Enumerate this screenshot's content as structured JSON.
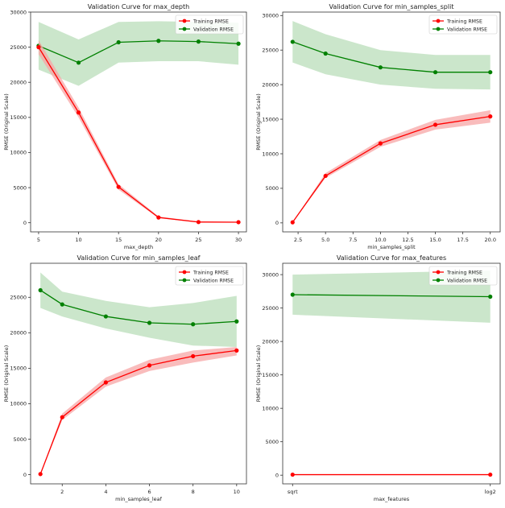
{
  "colors": {
    "training": "#ff0000",
    "validation": "#008000",
    "training_band": "#f7a6a6",
    "validation_band": "#a8d5a8"
  },
  "chart_data": [
    {
      "type": "line",
      "title": "Validation Curve for max_depth",
      "xlabel": "max_depth",
      "ylabel": "RMSE (Original Scale)",
      "xscale": "linear",
      "xlim": [
        4,
        31
      ],
      "ylim": [
        -1300,
        30000
      ],
      "xticks": [
        5,
        10,
        15,
        20,
        25,
        30
      ],
      "xtick_labels": [
        "5",
        "10",
        "15",
        "20",
        "25",
        "30"
      ],
      "yticks": [
        0,
        5000,
        10000,
        15000,
        20000,
        25000,
        30000
      ],
      "legend": "top-right",
      "grid": false,
      "x": [
        5,
        10,
        15,
        20,
        25,
        30
      ],
      "series": [
        {
          "name": "Training RMSE",
          "values": [
            25000,
            15700,
            5100,
            750,
            100,
            80
          ],
          "band_lower": [
            24000,
            15000,
            4700,
            650,
            50,
            30
          ],
          "band_upper": [
            26000,
            16400,
            5500,
            900,
            150,
            130
          ]
        },
        {
          "name": "Validation RMSE",
          "values": [
            25200,
            22800,
            25700,
            25900,
            25800,
            25500
          ],
          "band_lower": [
            21800,
            19500,
            22800,
            23000,
            23000,
            22500
          ],
          "band_upper": [
            28600,
            26100,
            28600,
            28700,
            28600,
            28500
          ]
        }
      ]
    },
    {
      "type": "line",
      "title": "Validation Curve for min_samples_split",
      "xlabel": "min_samples_split",
      "ylabel": "RMSE (Original Scale)",
      "xscale": "linear",
      "xlim": [
        1.1,
        20.9
      ],
      "ylim": [
        -1300,
        30500
      ],
      "xticks": [
        2.5,
        5.0,
        7.5,
        10.0,
        12.5,
        15.0,
        17.5,
        20.0
      ],
      "xtick_labels": [
        "2.5",
        "5.0",
        "7.5",
        "10.0",
        "12.5",
        "15.0",
        "17.5",
        "20.0"
      ],
      "yticks": [
        0,
        5000,
        10000,
        15000,
        20000,
        25000,
        30000
      ],
      "legend": "top-right",
      "grid": false,
      "x": [
        2,
        5,
        10,
        15,
        20
      ],
      "series": [
        {
          "name": "Training RMSE",
          "values": [
            80,
            6800,
            11500,
            14200,
            15400
          ],
          "band_lower": [
            40,
            6500,
            11000,
            13500,
            14500
          ],
          "band_upper": [
            120,
            7200,
            12000,
            14900,
            16300
          ]
        },
        {
          "name": "Validation RMSE",
          "values": [
            26200,
            24500,
            22500,
            21800,
            21800
          ],
          "band_lower": [
            23200,
            21500,
            20000,
            19400,
            19300
          ],
          "band_upper": [
            29200,
            27300,
            25000,
            24300,
            24300
          ]
        }
      ]
    },
    {
      "type": "line",
      "title": "Validation Curve for min_samples_leaf",
      "xlabel": "min_samples_leaf",
      "ylabel": "RMSE (Original Scale)",
      "xscale": "linear",
      "xlim": [
        0.55,
        10.45
      ],
      "ylim": [
        -1300,
        29800
      ],
      "xticks": [
        2,
        4,
        6,
        8,
        10
      ],
      "xtick_labels": [
        "2",
        "4",
        "6",
        "8",
        "10"
      ],
      "yticks": [
        0,
        5000,
        10000,
        15000,
        20000,
        25000
      ],
      "legend": "top-right",
      "grid": false,
      "x": [
        1,
        2,
        4,
        6,
        8,
        10
      ],
      "series": [
        {
          "name": "Training RMSE",
          "values": [
            80,
            8100,
            13000,
            15400,
            16700,
            17500
          ],
          "band_lower": [
            40,
            7700,
            12400,
            14600,
            15800,
            16800
          ],
          "band_upper": [
            120,
            8600,
            13700,
            16200,
            17500,
            18000
          ]
        },
        {
          "name": "Validation RMSE",
          "values": [
            26000,
            24000,
            22300,
            21400,
            21200,
            21600
          ],
          "band_lower": [
            23500,
            22300,
            20600,
            19300,
            18200,
            18000
          ],
          "band_upper": [
            28500,
            25800,
            24500,
            23600,
            24200,
            25200
          ]
        }
      ]
    },
    {
      "type": "line",
      "title": "Validation Curve for max_features",
      "xlabel": "max_features",
      "ylabel": "RMSE (Original Scale)",
      "xscale": "categorical",
      "xlim": [
        -0.05,
        1.05
      ],
      "ylim": [
        -1300,
        31700
      ],
      "xticks": [
        0,
        1
      ],
      "xtick_labels": [
        "sqrt",
        "log2"
      ],
      "yticks": [
        0,
        5000,
        10000,
        15000,
        20000,
        25000,
        30000
      ],
      "legend": "top-right",
      "grid": false,
      "x": [
        0,
        1
      ],
      "series": [
        {
          "name": "Training RMSE",
          "values": [
            80,
            80
          ],
          "band_lower": [
            40,
            40
          ],
          "band_upper": [
            120,
            120
          ]
        },
        {
          "name": "Validation RMSE",
          "values": [
            27000,
            26700
          ],
          "band_lower": [
            24000,
            22800
          ],
          "band_upper": [
            30000,
            30600
          ]
        }
      ]
    }
  ]
}
